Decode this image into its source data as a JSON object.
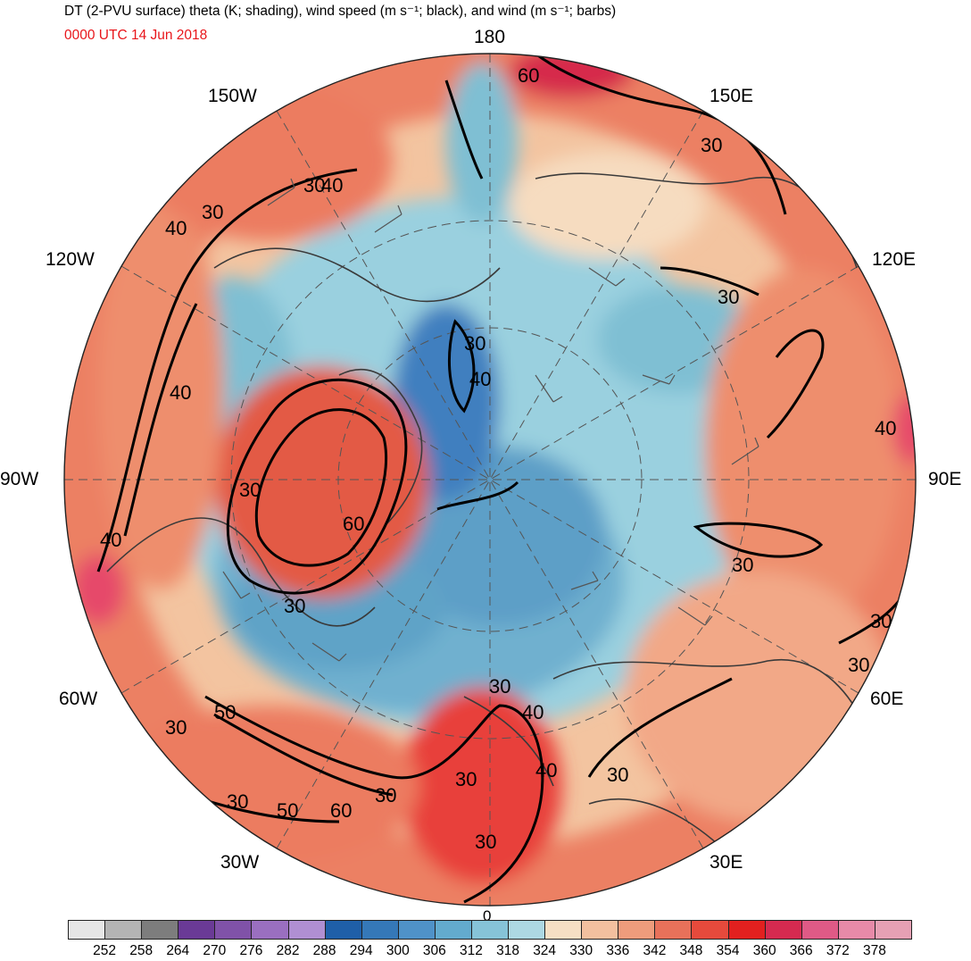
{
  "header": {
    "title": "DT (2-PVU surface) theta (K; shading), wind speed (m s⁻¹; black), and wind (m s⁻¹; barbs)",
    "valid_time": "0000 UTC 14 Jun 2018"
  },
  "map": {
    "projection": "north-polar-stereographic",
    "longitude_labels": {
      "top": "180",
      "bottom": "0",
      "left": "90W",
      "right": "90E",
      "upper_left_1": "150W",
      "upper_left_2": "120W",
      "upper_right_1": "150E",
      "upper_right_2": "120E",
      "lower_left_1": "60W",
      "lower_left_2": "30W",
      "lower_right_1": "60E",
      "lower_right_2": "30E"
    },
    "contour_labels": [
      "60",
      "30",
      "40",
      "30",
      "40",
      "30",
      "40",
      "40",
      "30",
      "60",
      "30",
      "40",
      "30",
      "50",
      "30",
      "30",
      "40",
      "50",
      "60",
      "30",
      "30",
      "30",
      "30",
      "40",
      "30",
      "30",
      "30",
      "30",
      "40",
      "30"
    ],
    "colors": {
      "warm_strong": "#e8413b",
      "warm": "#ec7c60",
      "warm_light": "#f2b595",
      "neutral": "#f7dfc3",
      "cold_light": "#a9d8e4",
      "cold": "#7fbfd3",
      "cold_mid": "#5fa3c7",
      "cold_deep": "#3f7fbf",
      "contour": "#000000",
      "coast": "#3a3a3a"
    }
  },
  "colorbar": {
    "levels": [
      "252",
      "258",
      "264",
      "270",
      "276",
      "282",
      "288",
      "294",
      "300",
      "306",
      "312",
      "318",
      "324",
      "330",
      "336",
      "342",
      "348",
      "354",
      "360",
      "366",
      "372",
      "378"
    ],
    "colors": [
      "#e6e6e6",
      "#b4b4b4",
      "#7d7d7d",
      "#6a3a96",
      "#8052a8",
      "#9a6fc0",
      "#b08fd2",
      "#1f5fa8",
      "#3578b8",
      "#4f92c8",
      "#63abce",
      "#86c3d8",
      "#add8e3",
      "#f6dfc4",
      "#f3c09f",
      "#ee9c7c",
      "#e8715a",
      "#e64a3c",
      "#e2201f",
      "#d52a50",
      "#df5a86",
      "#e78aa8",
      "#e6a0b4"
    ]
  }
}
